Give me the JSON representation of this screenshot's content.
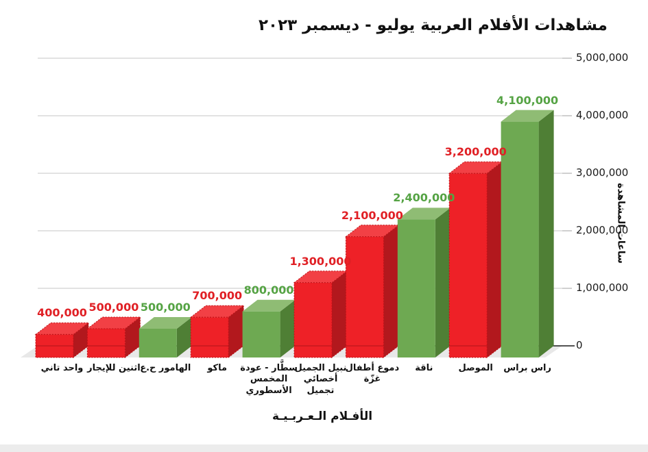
{
  "title": "مشاهدات الأفلام العربية يوليو - ديسمبر ٢٠٢٣",
  "axes": {
    "y_title": "ساعات المشاهدة",
    "x_title": "الأفـلام الـعـربـيـة"
  },
  "chart_data": {
    "type": "bar",
    "title": "مشاهدات الأفلام العربية يوليو - ديسمبر ٢٠٢٣",
    "xlabel": "الأفلام العربية",
    "ylabel": "ساعات المشاهدة",
    "ylim": [
      0,
      5000000
    ],
    "grid": true,
    "y_ticks": [
      0,
      1000000,
      2000000,
      3000000,
      4000000,
      5000000
    ],
    "y_tick_labels": [
      "0",
      "1,000,000",
      "2,000,000",
      "3,000,000",
      "4,000,000",
      "5,000,000"
    ],
    "categories": [
      "واحد تاني",
      "اثنين للإيجار",
      "الهامور ح.ع",
      "ماكو",
      "سطَّار - عودة\nالمخمس\nالأسطوري",
      "نبيل الجميل\nأخصائي\nتجميل",
      "دموع أطفال\nغزّة",
      "ناقة",
      "الموصل",
      "راس براس"
    ],
    "values": [
      400000,
      500000,
      500000,
      700000,
      800000,
      1300000,
      2100000,
      2400000,
      3200000,
      4100000
    ],
    "value_labels": [
      "400,000",
      "500,000",
      "500,000",
      "700,000",
      "800,000",
      "1,300,000",
      "2,100,000",
      "2,400,000",
      "3,200,000",
      "4,100,000"
    ],
    "bar_color_names": [
      "red",
      "red",
      "green",
      "red",
      "green",
      "red",
      "red",
      "green",
      "red",
      "green"
    ]
  },
  "colors": {
    "red_front": "#EE2127",
    "red_top": "#F24045",
    "red_side": "#B2181D",
    "red_outline": "#BE1117",
    "green_front": "#6EA952",
    "green_top": "#8FBC74",
    "green_side": "#4F7F35",
    "label_red": "#E02025",
    "label_green": "#55A344",
    "grid": "#D9D9D9",
    "tick": "#C0C0C0",
    "baseline": "#1A1A1A",
    "floor": "#E8E8E8"
  }
}
